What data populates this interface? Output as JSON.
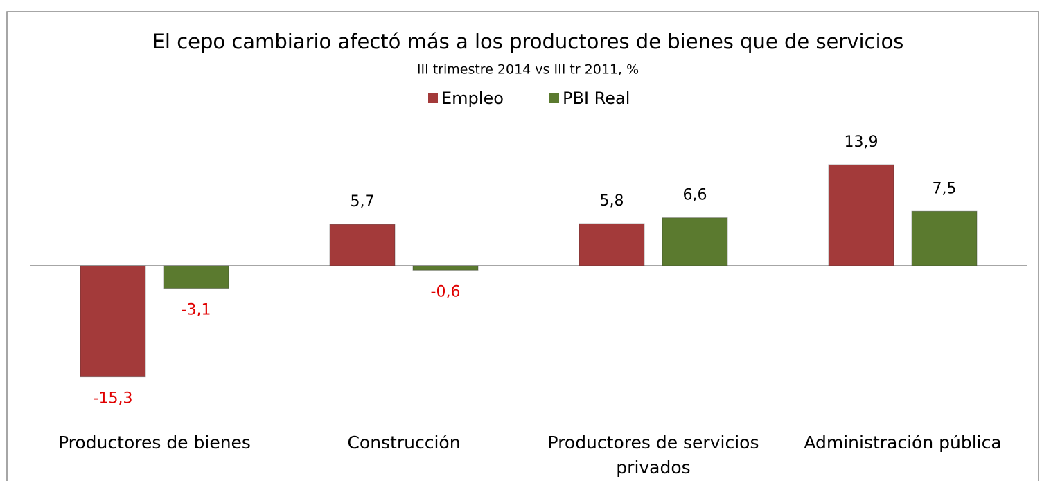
{
  "chart_data": {
    "type": "bar",
    "title": "El cepo cambiario afectó más a los productores de bienes que de servicios",
    "subtitle": "III trimestre 2014 vs III tr 2011, %",
    "categories": [
      "Productores de bienes",
      "Construcción",
      "Productores de servicios privados",
      "Administración pública"
    ],
    "series": [
      {
        "name": "Empleo",
        "color": "#a33a3a",
        "values": [
          -15.3,
          5.7,
          5.8,
          13.9
        ],
        "value_labels": [
          "-15,3",
          "5,7",
          "5,8",
          "13,9"
        ]
      },
      {
        "name": "PBI Real",
        "color": "#5b7a2f",
        "values": [
          -3.1,
          -0.6,
          6.6,
          7.5
        ],
        "value_labels": [
          "-3,1",
          "-0,6",
          "6,6",
          "7,5"
        ]
      }
    ],
    "legend": "top"
  }
}
